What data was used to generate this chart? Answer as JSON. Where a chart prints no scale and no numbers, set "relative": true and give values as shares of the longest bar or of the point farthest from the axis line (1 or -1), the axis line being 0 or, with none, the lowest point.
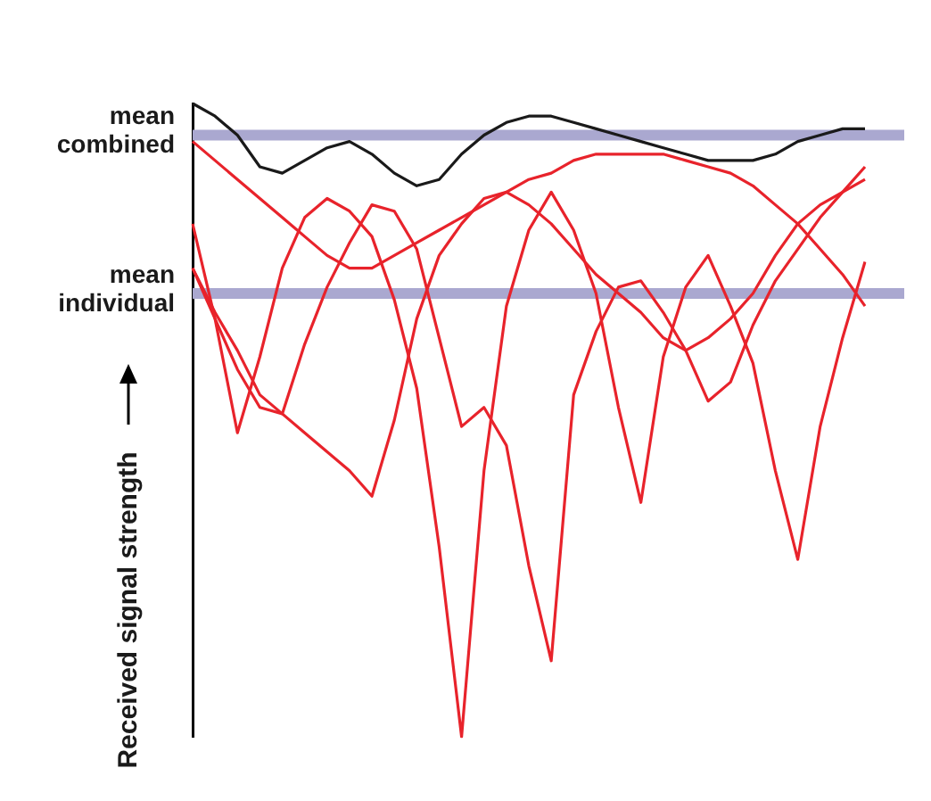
{
  "chart_data": {
    "type": "line",
    "relative": true,
    "ylabel": "Received signal strength",
    "marker": "none",
    "legend": false,
    "line_style": "solid",
    "categories": [
      null,
      null,
      null,
      null,
      null,
      null,
      null,
      null,
      null,
      null,
      null,
      null,
      null,
      null,
      null,
      null,
      null,
      null,
      null,
      null,
      null,
      null,
      null,
      null,
      null,
      null,
      null,
      null,
      null,
      null,
      null
    ],
    "series": [
      {
        "color": "#1a1a1a",
        "values": [
          1,
          0.98,
          0.95,
          0.9,
          0.89,
          0.91,
          0.93,
          0.94,
          0.92,
          0.89,
          0.87,
          0.88,
          0.92,
          0.95,
          0.97,
          0.98,
          0.98,
          0.97,
          0.96,
          0.95,
          0.94,
          0.93,
          0.92,
          0.91,
          0.91,
          0.91,
          0.92,
          0.94,
          0.95,
          0.96,
          0.96
        ]
      },
      {
        "color": "#e8232b",
        "values": [
          0.94,
          0.91,
          0.88,
          0.85,
          0.82,
          0.79,
          0.76,
          0.74,
          0.74,
          0.76,
          0.78,
          0.8,
          0.82,
          0.84,
          0.86,
          0.88,
          0.89,
          0.91,
          0.92,
          0.92,
          0.92,
          0.92,
          0.91,
          0.9,
          0.89,
          0.87,
          0.84,
          0.81,
          0.77,
          0.73,
          0.68
        ]
      },
      {
        "color": "#e8232b",
        "values": [
          0.81,
          0.66,
          0.48,
          0.6,
          0.74,
          0.82,
          0.85,
          0.83,
          0.79,
          0.69,
          0.55,
          0.3,
          0,
          0.42,
          0.68,
          0.8,
          0.86,
          0.8,
          0.7,
          0.52,
          0.37,
          0.6,
          0.71,
          0.76,
          0.68,
          0.59,
          0.42,
          0.28,
          0.49,
          0.63,
          0.75
        ]
      },
      {
        "color": "#e8232b",
        "values": [
          0.74,
          0.66,
          0.58,
          0.52,
          0.51,
          0.62,
          0.71,
          0.78,
          0.84,
          0.83,
          0.77,
          0.63,
          0.49,
          0.52,
          0.46,
          0.27,
          0.12,
          0.54,
          0.64,
          0.71,
          0.72,
          0.67,
          0.61,
          0.53,
          0.56,
          0.65,
          0.72,
          0.77,
          0.82,
          0.86,
          0.9
        ]
      },
      {
        "color": "#e8232b",
        "values": [
          0.74,
          0.67,
          0.61,
          0.54,
          0.51,
          0.48,
          0.45,
          0.42,
          0.38,
          0.5,
          0.66,
          0.76,
          0.81,
          0.85,
          0.86,
          0.84,
          0.81,
          0.77,
          0.73,
          0.7,
          0.67,
          0.63,
          0.61,
          0.63,
          0.66,
          0.7,
          0.76,
          0.81,
          0.84,
          0.86,
          0.88
        ]
      }
    ],
    "ref_lines": [
      {
        "axis": "y",
        "value": 0.95,
        "label": "mean combined",
        "color": "#aaa8d0"
      },
      {
        "axis": "y",
        "value": 0.7,
        "label": "mean individual",
        "color": "#aaa8d0"
      }
    ]
  }
}
